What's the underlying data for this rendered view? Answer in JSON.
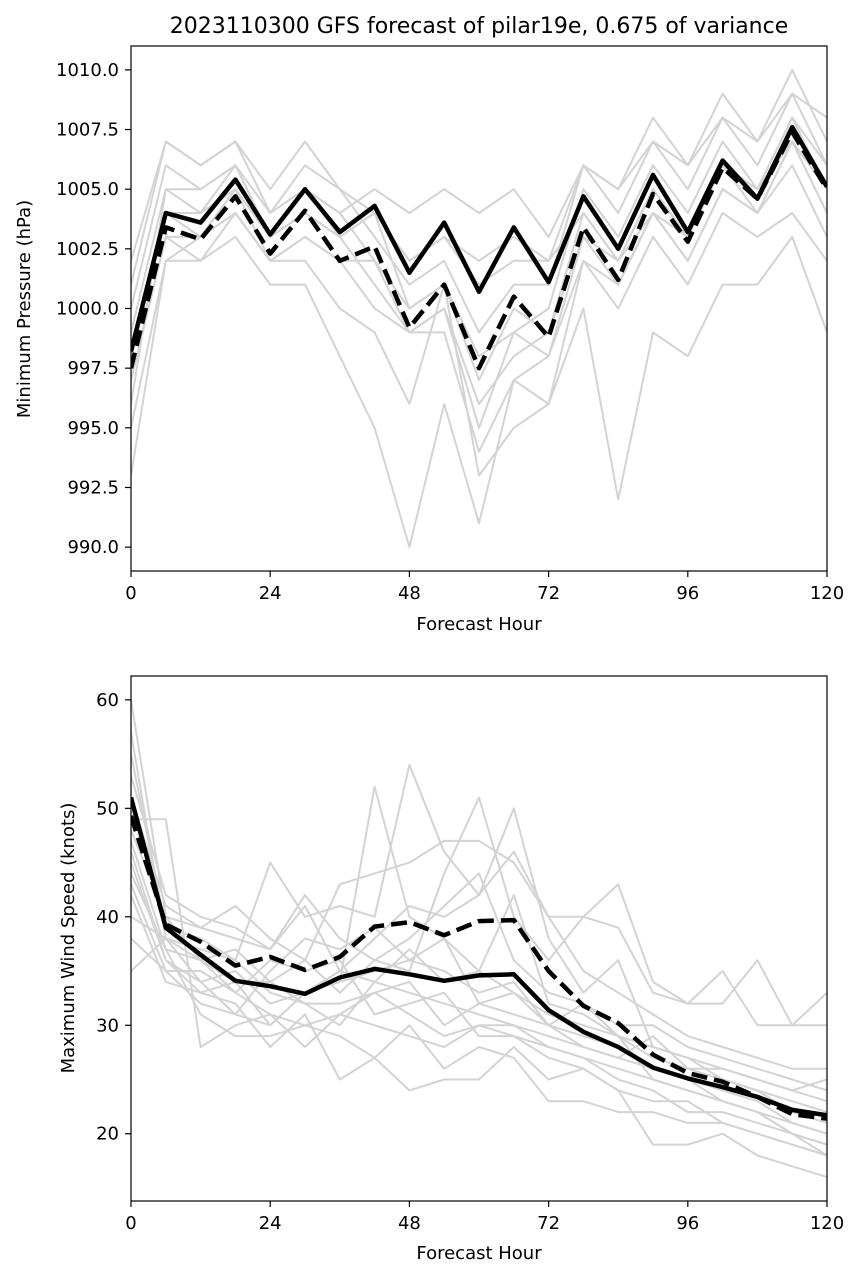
{
  "colors": {
    "ensemble": "#d3d3d3",
    "mean": "#000000",
    "axes": "#000000",
    "background": "#ffffff"
  },
  "chart_data": [
    {
      "type": "line",
      "title": "2023110300 GFS forecast of pilar19e, 0.675 of variance",
      "xlabel": "Forecast Hour",
      "ylabel": "Minimum Pressure (hPa)",
      "xlim": [
        0,
        120
      ],
      "ylim": [
        989.0,
        1011.0
      ],
      "xticks": [
        0,
        24,
        48,
        72,
        96,
        120
      ],
      "xtick_labels": [
        "0",
        "24",
        "48",
        "72",
        "96",
        "120"
      ],
      "yticks": [
        990.0,
        992.5,
        995.0,
        997.5,
        1000.0,
        1002.5,
        1005.0,
        1007.5,
        1010.0
      ],
      "ytick_labels": [
        "990.0",
        "992.5",
        "995.0",
        "997.5",
        "1000.0",
        "1002.5",
        "1005.0",
        "1007.5",
        "1010.0"
      ],
      "grid": false,
      "legend": "none",
      "x": [
        0,
        6,
        12,
        18,
        24,
        30,
        36,
        42,
        48,
        54,
        60,
        66,
        72,
        78,
        84,
        90,
        96,
        102,
        108,
        114,
        120
      ],
      "ensemble": [
        [
          993,
          1002,
          1002,
          1003,
          1001,
          1001,
          998,
          995,
          990,
          996,
          991,
          997,
          996,
          1000,
          992,
          999,
          998,
          1001,
          1001,
          1003,
          999
        ],
        [
          997,
          1003,
          1003,
          1004,
          1002,
          1002,
          1000,
          999,
          996,
          1001,
          993,
          995,
          996,
          1002,
          1000,
          1003,
          1001,
          1004,
          1003,
          1004,
          1002
        ],
        [
          998,
          1004,
          1004,
          1005,
          1002,
          1003,
          1002,
          1000,
          999,
          999,
          994,
          997,
          998,
          1003,
          1001,
          1004,
          1002,
          1005,
          1004,
          1006,
          1003
        ],
        [
          999,
          1005,
          1004,
          1006,
          1003,
          1004,
          1003,
          1001,
          999,
          1000,
          996,
          998,
          999,
          1004,
          1002,
          1005,
          1003,
          1006,
          1004,
          1007,
          1004
        ],
        [
          1000,
          1006,
          1005,
          1006,
          1003,
          1005,
          1004,
          1002,
          1000,
          1001,
          998,
          999,
          1000,
          1005,
          1003,
          1006,
          1004,
          1007,
          1005,
          1008,
          1005
        ],
        [
          1001,
          1007,
          1006,
          1007,
          1004,
          1006,
          1005,
          1003,
          1001,
          1002,
          999,
          1001,
          1001,
          1006,
          1004,
          1007,
          1005,
          1008,
          1006,
          1009,
          1006
        ],
        [
          1002,
          1007,
          1006,
          1007,
          1005,
          1007,
          1005,
          1004,
          1002,
          1003,
          1001,
          1002,
          1002,
          1006,
          1005,
          1008,
          1006,
          1009,
          1007,
          1010,
          1007
        ],
        [
          996,
          1005,
          1005,
          1006,
          1004,
          1005,
          1004,
          1005,
          1004,
          1005,
          1004,
          1005,
          1003,
          1006,
          1005,
          1007,
          1006,
          1008,
          1007,
          1009,
          1008
        ],
        [
          995,
          1002,
          1003,
          1005,
          1003,
          1004,
          1003,
          1004,
          1002,
          1003,
          1002,
          1003,
          1002,
          1004,
          1002,
          1005,
          1003,
          1006,
          1005,
          1008,
          1006
        ],
        [
          998,
          1004,
          1003,
          1005,
          1003,
          1005,
          1003,
          1004,
          1000,
          1001,
          997,
          1000,
          999,
          1003,
          1002,
          1004,
          1003,
          1006,
          1005,
          1007,
          1005
        ],
        [
          997,
          1003,
          1002,
          1004,
          1002,
          1003,
          1002,
          1002,
          999,
          1000,
          995,
          999,
          998,
          1002,
          1001,
          1004,
          1002,
          1005,
          1004,
          1007,
          1004
        ]
      ],
      "series": [
        {
          "style": "solid",
          "values": [
            998.2,
            1004.0,
            1003.6,
            1005.4,
            1003.1,
            1005.0,
            1003.2,
            1004.3,
            1001.5,
            1003.6,
            1000.7,
            1003.4,
            1001.1,
            1004.7,
            1002.5,
            1005.6,
            1003.2,
            1006.2,
            1004.6,
            1007.6,
            1005.1
          ]
        },
        {
          "style": "dashed",
          "values": [
            997.5,
            1003.4,
            1002.9,
            1004.7,
            1002.3,
            1004.1,
            1002.0,
            1002.6,
            999.2,
            1001.0,
            997.5,
            1000.5,
            998.8,
            1003.4,
            1001.2,
            1004.8,
            1002.8,
            1005.9,
            1004.6,
            1007.4,
            1005.0
          ]
        }
      ]
    },
    {
      "type": "line",
      "title": "",
      "xlabel": "Forecast Hour",
      "ylabel": "Maximum Wind Speed (knots)",
      "xlim": [
        0,
        120
      ],
      "ylim": [
        13.8,
        62.2
      ],
      "xticks": [
        0,
        24,
        48,
        72,
        96,
        120
      ],
      "xtick_labels": [
        "0",
        "24",
        "48",
        "72",
        "96",
        "120"
      ],
      "yticks": [
        20,
        30,
        40,
        50,
        60
      ],
      "ytick_labels": [
        "20",
        "30",
        "40",
        "50",
        "60"
      ],
      "grid": false,
      "legend": "none",
      "x": [
        0,
        6,
        12,
        18,
        24,
        30,
        36,
        42,
        48,
        54,
        60,
        66,
        72,
        78,
        84,
        90,
        96,
        102,
        108,
        114,
        120
      ],
      "ensemble": [
        [
          60,
          40,
          36,
          33,
          31,
          30,
          31,
          30,
          29,
          28,
          30,
          29,
          28,
          27,
          26,
          25,
          24,
          23,
          22,
          20,
          19
        ],
        [
          57,
          38,
          34,
          31,
          30,
          33,
          34,
          52,
          40,
          38,
          35,
          33,
          30,
          29,
          28,
          26,
          25,
          24,
          23,
          21,
          20
        ],
        [
          55,
          39,
          38,
          36,
          45,
          40,
          41,
          40,
          54,
          46,
          42,
          50,
          38,
          33,
          36,
          28,
          27,
          25,
          24,
          22,
          21
        ],
        [
          53,
          42,
          40,
          39,
          37,
          42,
          38,
          36,
          35,
          44,
          51,
          40,
          36,
          40,
          43,
          34,
          32,
          32,
          36,
          30,
          30
        ],
        [
          51,
          41,
          39,
          41,
          38,
          36,
          43,
          44,
          45,
          47,
          47,
          45,
          40,
          40,
          39,
          33,
          32,
          35,
          30,
          30,
          33
        ],
        [
          49,
          49,
          28,
          30,
          31,
          28,
          31,
          33,
          34,
          30,
          32,
          31,
          30,
          32,
          29,
          25,
          24,
          23,
          22,
          20,
          18
        ],
        [
          47,
          37,
          31,
          29,
          29,
          30,
          29,
          27,
          24,
          25,
          25,
          28,
          25,
          26,
          24,
          19,
          19,
          20,
          18,
          17,
          16
        ],
        [
          46,
          36,
          33,
          32,
          28,
          31,
          25,
          27,
          30,
          26,
          28,
          27,
          23,
          23,
          22,
          22,
          21,
          21,
          20,
          19,
          18
        ],
        [
          45,
          36,
          34,
          35,
          32,
          33,
          35,
          34,
          33,
          32,
          31,
          30,
          29,
          28,
          27,
          26,
          25,
          23,
          22,
          21,
          20
        ],
        [
          44,
          37,
          36,
          34,
          34,
          32,
          32,
          33,
          31,
          29,
          30,
          30,
          28,
          27,
          25,
          24,
          22,
          22,
          21,
          20,
          19
        ],
        [
          43,
          35,
          35,
          33,
          36,
          35,
          36,
          31,
          32,
          33,
          29,
          29,
          27,
          26,
          24,
          23,
          23,
          21,
          20,
          19,
          18
        ],
        [
          42,
          34,
          33,
          34,
          30,
          33,
          34,
          35,
          36,
          38,
          32,
          33,
          31,
          30,
          29,
          27,
          26,
          25,
          24,
          23,
          22
        ],
        [
          40,
          38,
          37,
          36,
          33,
          32,
          30,
          34,
          37,
          34,
          35,
          42,
          32,
          31,
          29,
          28,
          27,
          26,
          25,
          24,
          23
        ],
        [
          38,
          35,
          32,
          31,
          35,
          38,
          37,
          39,
          36,
          35,
          33,
          34,
          30,
          28,
          27,
          29,
          26,
          26,
          25,
          24,
          25
        ],
        [
          35,
          38,
          36,
          37,
          34,
          36,
          33,
          36,
          38,
          41,
          44,
          36,
          33,
          32,
          30,
          30,
          28,
          27,
          26,
          25,
          24
        ],
        [
          48,
          40,
          39,
          38,
          37,
          41,
          35,
          38,
          41,
          40,
          42,
          46,
          40,
          35,
          33,
          31,
          29,
          28,
          27,
          26,
          26
        ]
      ],
      "series": [
        {
          "style": "solid",
          "values": [
            51.0,
            39.0,
            36.5,
            34.1,
            33.6,
            32.9,
            34.4,
            35.2,
            34.7,
            34.1,
            34.6,
            34.7,
            31.4,
            29.4,
            28.0,
            26.1,
            25.1,
            24.3,
            23.4,
            22.2,
            21.7
          ]
        },
        {
          "style": "dashed",
          "values": [
            49.3,
            39.3,
            37.7,
            35.5,
            36.3,
            35.1,
            36.3,
            39.1,
            39.5,
            38.3,
            39.6,
            39.7,
            35.0,
            31.8,
            30.2,
            27.3,
            25.6,
            24.8,
            23.4,
            21.8,
            21.4
          ]
        }
      ]
    }
  ]
}
